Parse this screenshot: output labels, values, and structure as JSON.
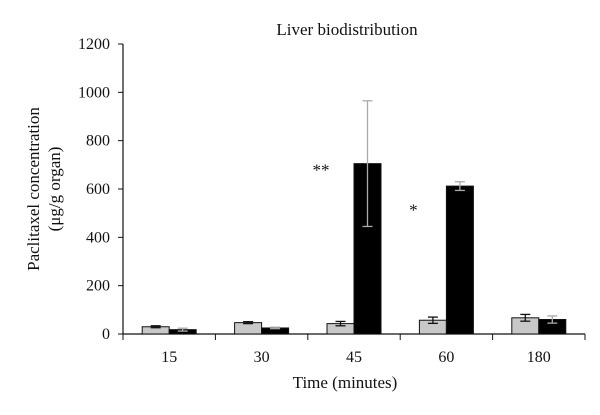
{
  "chart_data": {
    "type": "bar",
    "title": "Liver biodistribution",
    "xlabel": "Time (minutes)",
    "ylabel_line1": "Paclitaxel concentration",
    "ylabel_line2": "(μg/g organ)",
    "categories": [
      "15",
      "30",
      "45",
      "60",
      "180"
    ],
    "ylim": [
      0,
      1200
    ],
    "yticks": [
      0,
      200,
      400,
      600,
      800,
      1000,
      1200
    ],
    "grid": false,
    "legend": "none",
    "series": [
      {
        "color": "#c8c8c8",
        "errorbar_color": "#111111",
        "values": [
          30,
          47,
          43,
          57,
          67
        ],
        "errors": [
          4,
          4,
          9,
          13,
          14
        ]
      },
      {
        "color": "#000000",
        "errorbar_color": "#aaaaaa",
        "values": [
          18,
          25,
          705,
          612,
          60
        ],
        "errors": [
          6,
          3,
          260,
          18,
          15
        ]
      }
    ],
    "annotations": [
      {
        "text": "**",
        "category": "45",
        "y": 655
      },
      {
        "text": "*",
        "category": "60",
        "y": 490
      }
    ]
  }
}
